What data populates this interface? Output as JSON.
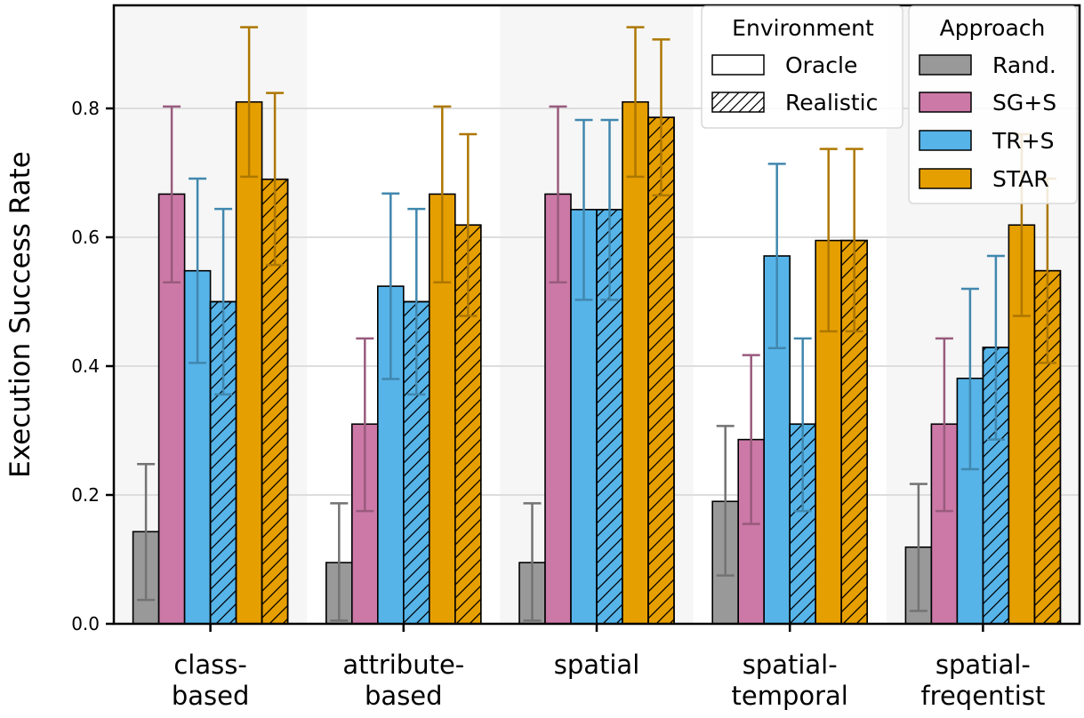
{
  "chart_data": {
    "type": "bar",
    "title": "",
    "xlabel": "",
    "ylabel": "Execution Success Rate",
    "ylim": [
      0,
      0.96
    ],
    "yticks": [
      "0.0",
      "0.2",
      "0.4",
      "0.6",
      "0.8"
    ],
    "ytick_values": [
      0,
      0.2,
      0.4,
      0.6,
      0.8
    ],
    "grid": true,
    "categories": [
      {
        "line1": "class-",
        "line2": "based"
      },
      {
        "line1": "attribute-",
        "line2": "based"
      },
      {
        "line1": "spatial",
        "line2": ""
      },
      {
        "line1": "spatial-",
        "line2": "temporal"
      },
      {
        "line1": "spatial-",
        "line2": "freqentist"
      }
    ],
    "series": [
      {
        "name": "Rand.",
        "environment": "Oracle",
        "color": "#999999",
        "err_color": "#737373",
        "values": [
          0.143,
          0.095,
          0.095,
          0.19,
          0.119
        ],
        "err_low": [
          0.037,
          0.005,
          0.005,
          0.075,
          0.02
        ],
        "err_high": [
          0.248,
          0.187,
          0.187,
          0.307,
          0.217
        ]
      },
      {
        "name": "SG+S",
        "environment": "Oracle",
        "color": "#cc79a7",
        "err_color": "#995b7d",
        "values": [
          0.667,
          0.31,
          0.667,
          0.286,
          0.31
        ],
        "err_low": [
          0.53,
          0.175,
          0.53,
          0.155,
          0.175
        ],
        "err_high": [
          0.803,
          0.443,
          0.803,
          0.417,
          0.443
        ]
      },
      {
        "name": "TR+S",
        "environment": "Oracle",
        "color": "#56b4e9",
        "err_color": "#4187ae",
        "values": [
          0.548,
          0.524,
          0.643,
          0.571,
          0.381
        ],
        "err_low": [
          0.405,
          0.38,
          0.503,
          0.428,
          0.24
        ],
        "err_high": [
          0.691,
          0.668,
          0.782,
          0.714,
          0.52
        ]
      },
      {
        "name": "TR+S",
        "environment": "Realistic",
        "color": "#56b4e9",
        "err_color": "#4187ae",
        "values": [
          0.5,
          0.5,
          0.643,
          0.31,
          0.429
        ],
        "err_low": [
          0.356,
          0.356,
          0.503,
          0.175,
          0.286
        ],
        "err_high": [
          0.644,
          0.644,
          0.782,
          0.443,
          0.571
        ]
      },
      {
        "name": "STAR",
        "environment": "Oracle",
        "color": "#e69f00",
        "err_color": "#ad7700",
        "values": [
          0.81,
          0.667,
          0.81,
          0.595,
          0.619
        ],
        "err_low": [
          0.694,
          0.53,
          0.694,
          0.454,
          0.478
        ],
        "err_high": [
          0.926,
          0.803,
          0.926,
          0.737,
          0.76
        ]
      },
      {
        "name": "STAR",
        "environment": "Realistic",
        "color": "#e69f00",
        "err_color": "#ad7700",
        "values": [
          0.69,
          0.619,
          0.786,
          0.595,
          0.548
        ],
        "err_low": [
          0.557,
          0.478,
          0.665,
          0.454,
          0.405
        ],
        "err_high": [
          0.824,
          0.76,
          0.907,
          0.737,
          0.691
        ]
      }
    ],
    "legend_environment": {
      "title": "Environment",
      "items": [
        {
          "label": "Oracle",
          "hatch": false
        },
        {
          "label": "Realistic",
          "hatch": true
        }
      ]
    },
    "legend_approach": {
      "title": "Approach",
      "items": [
        {
          "label": "Rand.",
          "color": "#999999"
        },
        {
          "label": "SG+S",
          "color": "#cc79a7"
        },
        {
          "label": "TR+S",
          "color": "#56b4e9"
        },
        {
          "label": "STAR",
          "color": "#e69f00"
        }
      ]
    }
  }
}
